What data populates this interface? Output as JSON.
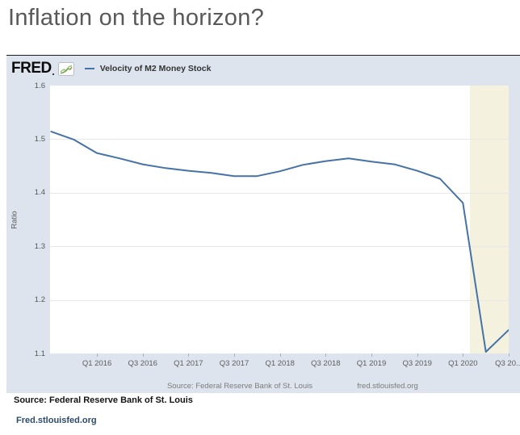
{
  "page": {
    "title": "Inflation on the horizon?",
    "source_line": "Source: Federal Reserve Bank of St. Louis",
    "link_line": "Fred.stlouisfed.org"
  },
  "chart": {
    "logo_text": "FRED",
    "legend_label": "Velocity of M2 Money Stock",
    "footer_source": "Source: Federal Reserve Bank of St. Louis",
    "footer_site": "fred.stlouisfed.org",
    "colors": {
      "background": "#dde4ee",
      "plot_background": "#ffffff",
      "line": "#4572a7",
      "recession_band": "#f4f2df",
      "gridline": "#e8e8e8",
      "logo_icon_green": "#6a9f3c"
    }
  },
  "chart_data": {
    "type": "line",
    "title": "Velocity of M2 Money Stock",
    "xlabel": "",
    "ylabel": "Ratio",
    "ylim": [
      1.1,
      1.6
    ],
    "yticks": [
      1.6,
      1.5,
      1.4,
      1.3,
      1.2,
      1.1
    ],
    "grid": true,
    "legend_position": "top-left",
    "x": [
      "2015 Q3",
      "2015 Q4",
      "2016 Q1",
      "2016 Q2",
      "2016 Q3",
      "2016 Q4",
      "2017 Q1",
      "2017 Q2",
      "2017 Q3",
      "2017 Q4",
      "2018 Q1",
      "2018 Q2",
      "2018 Q3",
      "2018 Q4",
      "2019 Q1",
      "2019 Q2",
      "2019 Q3",
      "2019 Q4",
      "2020 Q1",
      "2020 Q2",
      "2020 Q3"
    ],
    "series": [
      {
        "name": "Velocity of M2 Money Stock",
        "values": [
          1.514,
          1.499,
          1.474,
          1.464,
          1.453,
          1.446,
          1.441,
          1.437,
          1.431,
          1.431,
          1.44,
          1.452,
          1.459,
          1.464,
          1.458,
          1.453,
          1.441,
          1.426,
          1.381,
          1.103,
          1.144
        ]
      }
    ],
    "xtick_labels": [
      "Q1 2016",
      "Q3 2016",
      "Q1 2017",
      "Q3 2017",
      "Q1 2018",
      "Q3 2018",
      "Q1 2019",
      "Q3 2019",
      "Q1 2020",
      "Q3 20..."
    ],
    "xtick_indices": [
      2,
      4,
      6,
      8,
      10,
      12,
      14,
      16,
      18,
      20
    ],
    "recession_band": {
      "start_index": 18.3,
      "end_index": 20
    }
  }
}
